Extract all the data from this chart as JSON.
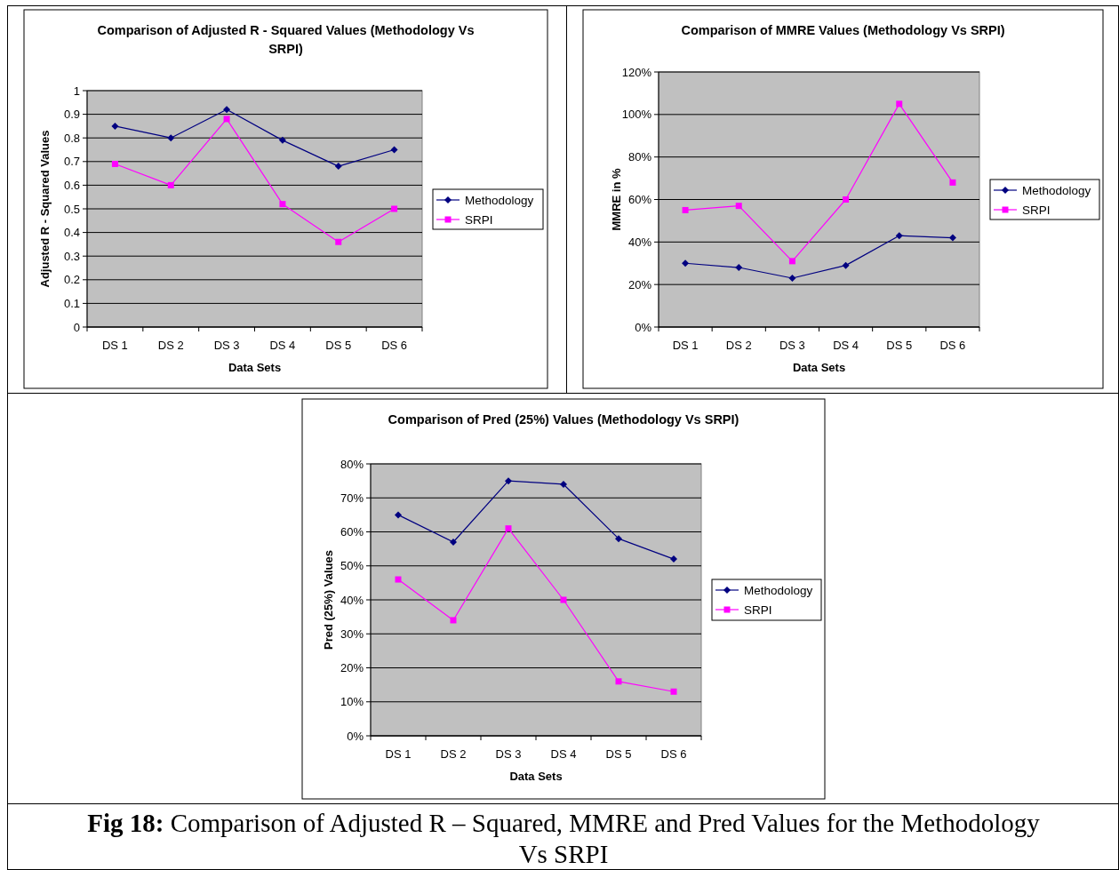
{
  "chart_data": [
    {
      "type": "line",
      "title": "Comparison of Adjusted R - Squared Values (Methodology Vs SRPI)",
      "xlabel": "Data Sets",
      "ylabel": "Adjusted R - Squared Values",
      "categories": [
        "DS 1",
        "DS 2",
        "DS 3",
        "DS 4",
        "DS 5",
        "DS 6"
      ],
      "ylim": [
        0,
        1
      ],
      "yticks": [
        0,
        0.1,
        0.2,
        0.3,
        0.4,
        0.5,
        0.6,
        0.7,
        0.8,
        0.9,
        1
      ],
      "grid": "y",
      "legend": "right",
      "series": [
        {
          "name": "Methodology",
          "color": "#000080",
          "marker": "diamond",
          "values": [
            0.85,
            0.8,
            0.92,
            0.79,
            0.68,
            0.75
          ]
        },
        {
          "name": "SRPI",
          "color": "#ff00ff",
          "marker": "square",
          "values": [
            0.69,
            0.6,
            0.88,
            0.52,
            0.36,
            0.5
          ]
        }
      ]
    },
    {
      "type": "line",
      "title": "Comparison of MMRE Values (Methodology Vs SRPI)",
      "xlabel": "Data Sets",
      "ylabel": "MMRE in %",
      "categories": [
        "DS 1",
        "DS 2",
        "DS 3",
        "DS 4",
        "DS 5",
        "DS 6"
      ],
      "ylim": [
        0,
        120
      ],
      "yticks": [
        {
          "value": 0,
          "label": "0%"
        },
        {
          "value": 20,
          "label": "20%"
        },
        {
          "value": 40,
          "label": "40%"
        },
        {
          "value": 60,
          "label": "60%"
        },
        {
          "value": 80,
          "label": "80%"
        },
        {
          "value": 100,
          "label": "100%"
        },
        {
          "value": 120,
          "label": "120%"
        }
      ],
      "grid": "y",
      "legend": "right",
      "series": [
        {
          "name": "Methodology",
          "color": "#000080",
          "marker": "diamond",
          "values": [
            30,
            28,
            23,
            29,
            43,
            42
          ]
        },
        {
          "name": "SRPI",
          "color": "#ff00ff",
          "marker": "square",
          "values": [
            55,
            57,
            31,
            60,
            105,
            68
          ]
        }
      ]
    },
    {
      "type": "line",
      "title": "Comparison of Pred (25%) Values (Methodology Vs SRPI)",
      "xlabel": "Data Sets",
      "ylabel": "Pred (25%) Values",
      "categories": [
        "DS 1",
        "DS 2",
        "DS 3",
        "DS 4",
        "DS 5",
        "DS 6"
      ],
      "ylim": [
        0,
        80
      ],
      "yticks": [
        {
          "value": 0,
          "label": "0%"
        },
        {
          "value": 10,
          "label": "10%"
        },
        {
          "value": 20,
          "label": "20%"
        },
        {
          "value": 30,
          "label": "30%"
        },
        {
          "value": 40,
          "label": "40%"
        },
        {
          "value": 50,
          "label": "50%"
        },
        {
          "value": 60,
          "label": "60%"
        },
        {
          "value": 70,
          "label": "70%"
        },
        {
          "value": 80,
          "label": "80%"
        }
      ],
      "grid": "y",
      "legend": "right",
      "annotations": [
        "Fig 18:",
        "Comparison of Adjusted R – Squared, MMRE and Pred Values for the Methodology Vs SRPI"
      ],
      "series": [
        {
          "name": "Methodology",
          "color": "#000080",
          "marker": "diamond",
          "values": [
            65,
            57,
            75,
            74,
            58,
            52
          ]
        },
        {
          "name": "SRPI",
          "color": "#ff00ff",
          "marker": "square",
          "values": [
            46,
            34,
            61,
            40,
            16,
            13
          ]
        }
      ]
    }
  ]
}
